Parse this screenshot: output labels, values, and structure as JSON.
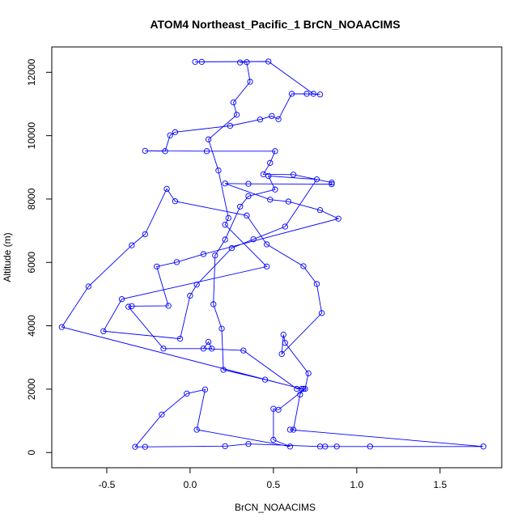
{
  "chart_data": {
    "type": "line",
    "title": "ATOM4 Northeast_Pacific_1 BrCN_NOAACIMS",
    "xlabel": "BrCN_NOAACIMS",
    "ylabel": "Altitude (m)",
    "xlim": [
      -0.83,
      1.87
    ],
    "ylim": [
      -480,
      12800
    ],
    "xticks": [
      -0.5,
      0.0,
      0.5,
      1.0,
      1.5
    ],
    "xtick_labels": [
      "-0.5",
      "0.0",
      "0.5",
      "1.0",
      "1.5"
    ],
    "yticks": [
      0,
      2000,
      4000,
      6000,
      8000,
      10000,
      12000
    ],
    "ytick_labels": [
      "0",
      "2000",
      "4000",
      "6000",
      "8000",
      "10000",
      "12000"
    ],
    "grid": false,
    "legend": "none",
    "series_color": "#0000ff",
    "series": [
      {
        "points": [
          {
            "x": 0.03,
            "y": 12330
          },
          {
            "x": 0.07,
            "y": 12330
          },
          {
            "x": 0.47,
            "y": 12340
          },
          {
            "x": 0.74,
            "y": 11320
          },
          {
            "x": 0.78,
            "y": 11300
          },
          {
            "x": 0.7,
            "y": 11320
          },
          {
            "x": 0.61,
            "y": 11320
          },
          {
            "x": 0.53,
            "y": 10520
          },
          {
            "x": 0.49,
            "y": 10620
          },
          {
            "x": 0.42,
            "y": 10510
          },
          {
            "x": 0.24,
            "y": 10310
          },
          {
            "x": -0.09,
            "y": 10110
          },
          {
            "x": -0.12,
            "y": 10010
          },
          {
            "x": -0.15,
            "y": 9510
          },
          {
            "x": -0.27,
            "y": 9520
          },
          {
            "x": 0.1,
            "y": 9510
          },
          {
            "x": 0.51,
            "y": 9510
          },
          {
            "x": 0.48,
            "y": 9140
          },
          {
            "x": 0.44,
            "y": 8780
          },
          {
            "x": 0.62,
            "y": 8770
          },
          {
            "x": 0.85,
            "y": 8520
          },
          {
            "x": 0.85,
            "y": 8470
          },
          {
            "x": 0.35,
            "y": 8480
          },
          {
            "x": 0.21,
            "y": 8490
          },
          {
            "x": 0.48,
            "y": 7980
          },
          {
            "x": 0.59,
            "y": 7920
          },
          {
            "x": 0.78,
            "y": 7650
          },
          {
            "x": 0.89,
            "y": 7380
          },
          {
            "x": 0.08,
            "y": 6260
          },
          {
            "x": -0.08,
            "y": 6010
          },
          {
            "x": -0.2,
            "y": 5870
          },
          {
            "x": -0.13,
            "y": 4630
          },
          {
            "x": -0.35,
            "y": 4620
          },
          {
            "x": -0.37,
            "y": 4600
          },
          {
            "x": -0.16,
            "y": 3280
          },
          {
            "x": 0.13,
            "y": 3280
          },
          {
            "x": 0.11,
            "y": 3490
          },
          {
            "x": 0.08,
            "y": 3280
          },
          {
            "x": 0.32,
            "y": 3220
          },
          {
            "x": 0.64,
            "y": 2010
          },
          {
            "x": 0.68,
            "y": 2010
          },
          {
            "x": 0.66,
            "y": 1830
          },
          {
            "x": 0.62,
            "y": 720
          },
          {
            "x": 0.6,
            "y": 720
          },
          {
            "x": 1.76,
            "y": 190
          },
          {
            "x": 1.08,
            "y": 190
          },
          {
            "x": 0.88,
            "y": 190
          },
          {
            "x": 0.81,
            "y": 190
          },
          {
            "x": 0.78,
            "y": 190
          },
          {
            "x": 0.35,
            "y": 270
          },
          {
            "x": 0.21,
            "y": 200
          },
          {
            "x": -0.27,
            "y": 180
          },
          {
            "x": -0.33,
            "y": 180
          },
          {
            "x": -0.17,
            "y": 1200
          },
          {
            "x": -0.02,
            "y": 1860
          },
          {
            "x": 0.09,
            "y": 1990
          },
          {
            "x": 0.04,
            "y": 720
          },
          {
            "x": 0.6,
            "y": 190
          },
          {
            "x": 0.5,
            "y": 400
          },
          {
            "x": 0.5,
            "y": 1380
          },
          {
            "x": 0.53,
            "y": 1350
          },
          {
            "x": 0.69,
            "y": 2010
          },
          {
            "x": 0.71,
            "y": 2500
          },
          {
            "x": 0.57,
            "y": 3460
          },
          {
            "x": 0.56,
            "y": 3720
          },
          {
            "x": 0.55,
            "y": 3110
          },
          {
            "x": 0.79,
            "y": 4400
          },
          {
            "x": 0.76,
            "y": 5320
          },
          {
            "x": 0.68,
            "y": 5880
          },
          {
            "x": 0.46,
            "y": 6570
          },
          {
            "x": 0.34,
            "y": 7480
          },
          {
            "x": -0.09,
            "y": 7930
          },
          {
            "x": -0.14,
            "y": 8320
          },
          {
            "x": -0.27,
            "y": 6890
          },
          {
            "x": -0.35,
            "y": 6540
          },
          {
            "x": -0.61,
            "y": 5240
          },
          {
            "x": -0.77,
            "y": 3960
          },
          {
            "x": 0.67,
            "y": 2010
          },
          {
            "x": 0.45,
            "y": 2300
          },
          {
            "x": 0.2,
            "y": 2610
          },
          {
            "x": 0.19,
            "y": 3910
          },
          {
            "x": 0.14,
            "y": 4680
          },
          {
            "x": 0.15,
            "y": 6220
          },
          {
            "x": 0.21,
            "y": 6720
          },
          {
            "x": 0.3,
            "y": 7760
          },
          {
            "x": 0.35,
            "y": 8090
          },
          {
            "x": 0.51,
            "y": 8300
          },
          {
            "x": 0.47,
            "y": 8730
          },
          {
            "x": 0.76,
            "y": 8620
          },
          {
            "x": 0.57,
            "y": 7130
          },
          {
            "x": 0.38,
            "y": 6730
          },
          {
            "x": 0.25,
            "y": 6450
          },
          {
            "x": 0.04,
            "y": 5300
          },
          {
            "x": 0.0,
            "y": 4950
          },
          {
            "x": -0.06,
            "y": 3590
          },
          {
            "x": -0.52,
            "y": 3830
          },
          {
            "x": -0.41,
            "y": 4840
          },
          {
            "x": 0.46,
            "y": 5870
          },
          {
            "x": 0.21,
            "y": 7190
          },
          {
            "x": 0.23,
            "y": 7400
          },
          {
            "x": 0.17,
            "y": 8900
          },
          {
            "x": 0.11,
            "y": 9880
          },
          {
            "x": 0.28,
            "y": 10660
          },
          {
            "x": 0.26,
            "y": 11050
          },
          {
            "x": 0.36,
            "y": 11700
          },
          {
            "x": 0.34,
            "y": 12320
          },
          {
            "x": 0.3,
            "y": 12310
          }
        ]
      }
    ]
  }
}
